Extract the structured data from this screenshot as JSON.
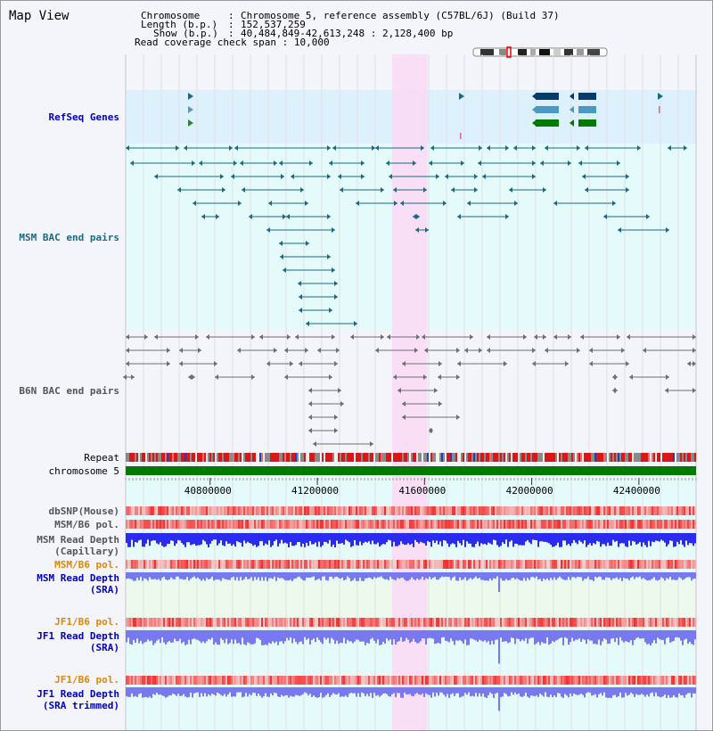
{
  "window": {
    "title": "Map View"
  },
  "header": {
    "chromosome_key": "Chromosome",
    "chromosome_value": "Chromosome 5, reference assembly (C57BL/6J) (Build 37)",
    "length_key": "Length (b.p.)",
    "length_value": "152,537,259",
    "show_key": "Show (b.p.)",
    "show_value": "40,484,849-42,613,248 : 2,128,400 bp",
    "coverage_key": "Read coverage check span",
    "coverage_value": "10,000"
  },
  "view": {
    "start_bp": 40484849,
    "end_bp": 42613248,
    "highlight_start_bp": 41480000,
    "highlight_end_bp": 41610000
  },
  "ruler": {
    "ticks": [
      {
        "bp": 40800000,
        "label": "40800000"
      },
      {
        "bp": 41200000,
        "label": "41200000"
      },
      {
        "bp": 41600000,
        "label": "41600000"
      },
      {
        "bp": 42000000,
        "label": "42000000"
      },
      {
        "bp": 42400000,
        "label": "42400000"
      }
    ]
  },
  "tracks": {
    "refseq": {
      "label": "RefSeq Genes"
    },
    "msm_bac": {
      "label": "MSM BAC end pairs"
    },
    "b6n_bac": {
      "label": "B6N BAC end pairs"
    },
    "repeat": {
      "label": "Repeat"
    },
    "chromosome": {
      "label": "chromosome 5"
    },
    "dbsnp": {
      "label": "dbSNP(Mouse)"
    },
    "msm_pol1": {
      "label": "MSM/B6 pol."
    },
    "msm_depth_cap": {
      "label_line1": "MSM Read Depth",
      "label_line2": "(Capillary)"
    },
    "msm_pol2": {
      "label": "MSM/B6 pol."
    },
    "msm_depth_sra": {
      "label_line1": "MSM Read Depth",
      "label_line2": "(SRA)"
    },
    "jf1_pol1": {
      "label": "JF1/B6 pol."
    },
    "jf1_depth_sra": {
      "label_line1": "JF1 Read Depth",
      "label_line2": "(SRA)"
    },
    "jf1_pol2": {
      "label": "JF1/B6 pol."
    },
    "jf1_depth_trim": {
      "label_line1": "JF1 Read Depth",
      "label_line2": "(SRA trimmed)"
    }
  },
  "colors": {
    "refseq_bg": "#dcf1fb",
    "bac_bg": "#e4fafb",
    "highlight": "#fadcf5",
    "msm_bac": "#1a6a84",
    "b6n_bac": "#6e6e6e",
    "chromosome": "#007a00",
    "depth_cap": "#2a2af0",
    "depth_sra": "#7878f0",
    "label_blue": "#0000c0",
    "label_teal": "#1a6a84",
    "label_orange": "#e08800"
  }
}
